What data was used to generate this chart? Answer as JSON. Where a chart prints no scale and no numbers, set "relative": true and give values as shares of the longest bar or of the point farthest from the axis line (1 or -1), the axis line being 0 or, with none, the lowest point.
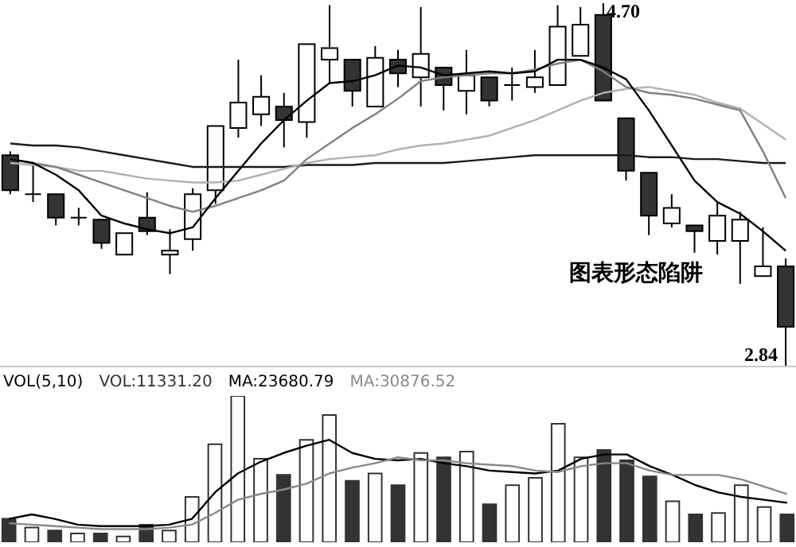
{
  "chart_data": [
    {
      "type": "candlestick",
      "categories": [
        null,
        null,
        null,
        null,
        null,
        null,
        null,
        null,
        null,
        null,
        null,
        null,
        null,
        null,
        null,
        null,
        null,
        null,
        null,
        null,
        null,
        null,
        null,
        null,
        null,
        null,
        null,
        null,
        null,
        null,
        null,
        null,
        null,
        null,
        null
      ],
      "ohlc": [
        [
          3.92,
          3.94,
          3.72,
          3.74
        ],
        [
          3.72,
          3.88,
          3.68,
          3.72
        ],
        [
          3.72,
          3.72,
          3.56,
          3.6
        ],
        [
          3.6,
          3.65,
          3.56,
          3.6
        ],
        [
          3.59,
          3.59,
          3.44,
          3.47
        ],
        [
          3.41,
          3.52,
          3.41,
          3.52
        ],
        [
          3.6,
          3.73,
          3.51,
          3.53
        ],
        [
          3.41,
          3.54,
          3.31,
          3.43
        ],
        [
          3.49,
          3.75,
          3.43,
          3.72
        ],
        [
          3.74,
          4.07,
          3.67,
          4.07
        ],
        [
          4.06,
          4.41,
          4.01,
          4.19
        ],
        [
          4.13,
          4.33,
          4.07,
          4.22
        ],
        [
          4.17,
          4.24,
          3.96,
          4.1
        ],
        [
          4.09,
          4.49,
          4.01,
          4.49
        ],
        [
          4.41,
          4.69,
          4.29,
          4.47
        ],
        [
          4.41,
          4.41,
          4.17,
          4.25
        ],
        [
          4.17,
          4.48,
          4.17,
          4.42
        ],
        [
          4.41,
          4.46,
          4.27,
          4.34
        ],
        [
          4.32,
          4.68,
          4.17,
          4.44
        ],
        [
          4.37,
          4.37,
          4.15,
          4.28
        ],
        [
          4.25,
          4.46,
          4.13,
          4.33
        ],
        [
          4.32,
          4.32,
          4.17,
          4.2
        ],
        [
          4.28,
          4.37,
          4.2,
          4.28
        ],
        [
          4.27,
          4.46,
          4.24,
          4.32
        ],
        [
          4.28,
          4.69,
          4.28,
          4.58
        ],
        [
          4.43,
          4.68,
          4.43,
          4.59
        ],
        [
          4.64,
          4.7,
          4.2,
          4.2
        ],
        [
          4.11,
          4.11,
          3.79,
          3.84
        ],
        [
          3.83,
          3.83,
          3.51,
          3.61
        ],
        [
          3.57,
          3.72,
          3.55,
          3.65
        ],
        [
          3.56,
          3.56,
          3.42,
          3.53
        ],
        [
          3.48,
          3.68,
          3.41,
          3.61
        ],
        [
          3.48,
          3.63,
          3.26,
          3.59
        ],
        [
          3.3,
          3.55,
          3.3,
          3.35
        ],
        [
          3.35,
          3.39,
          2.84,
          3.04
        ]
      ],
      "colors": [
        "#333333",
        "#000000",
        "#333333",
        "#000000",
        "#333333",
        "#ffffff",
        "#333333",
        "#ffffff",
        "#ffffff",
        "#ffffff",
        "#ffffff",
        "#ffffff",
        "#333333",
        "#ffffff",
        "#ffffff",
        "#333333",
        "#ffffff",
        "#333333",
        "#ffffff",
        "#333333",
        "#ffffff",
        "#333333",
        "#000000",
        "#ffffff",
        "#ffffff",
        "#ffffff",
        "#333333",
        "#333333",
        "#333333",
        "#ffffff",
        "#333333",
        "#ffffff",
        "#ffffff",
        "#ffffff",
        "#333333"
      ],
      "series": [
        {
          "type": "line",
          "color": "#1a1a1a",
          "values": [
            3.98,
            3.97,
            3.97,
            3.96,
            3.94,
            3.92,
            3.9,
            3.88,
            3.86,
            3.86,
            3.86,
            3.86,
            3.86,
            3.87,
            3.87,
            3.87,
            3.88,
            3.88,
            3.88,
            3.88,
            3.89,
            3.9,
            3.91,
            3.92,
            3.92,
            3.92,
            3.92,
            3.92,
            3.91,
            3.91,
            3.9,
            3.9,
            3.89,
            3.88,
            3.88
          ]
        },
        {
          "type": "line",
          "color": "#b0b0b0",
          "values": [
            3.88,
            3.87,
            3.86,
            3.84,
            3.84,
            3.82,
            3.8,
            3.79,
            3.78,
            3.78,
            3.79,
            3.82,
            3.85,
            3.88,
            3.9,
            3.91,
            3.92,
            3.95,
            3.97,
            3.98,
            4.0,
            4.02,
            4.06,
            4.1,
            4.15,
            4.2,
            4.24,
            4.26,
            4.27,
            4.25,
            4.23,
            4.19,
            4.16,
            4.08,
            4.0
          ]
        },
        {
          "type": "line",
          "color": "#808080",
          "values": [
            3.9,
            3.88,
            3.86,
            3.82,
            3.78,
            3.74,
            3.7,
            3.66,
            3.63,
            3.66,
            3.7,
            3.74,
            3.79,
            3.9,
            3.98,
            4.06,
            4.13,
            4.21,
            4.3,
            4.32,
            4.33,
            4.34,
            4.34,
            4.36,
            4.39,
            4.41,
            4.35,
            4.27,
            4.24,
            4.23,
            4.21,
            4.18,
            4.15,
            3.94,
            3.7
          ]
        },
        {
          "type": "line",
          "color": "#000000",
          "values": [
            3.9,
            3.88,
            3.82,
            3.74,
            3.61,
            3.57,
            3.54,
            3.52,
            3.55,
            3.7,
            3.84,
            3.98,
            4.1,
            4.2,
            4.29,
            4.3,
            4.33,
            4.38,
            4.37,
            4.33,
            4.34,
            4.35,
            4.34,
            4.35,
            4.41,
            4.41,
            4.37,
            4.31,
            4.15,
            3.97,
            3.79,
            3.68,
            3.62,
            3.53,
            3.43
          ]
        }
      ],
      "ylim": [
        2.84,
        4.7
      ],
      "annotations": [
        "4.70",
        "2.84",
        "图表形态陷阱"
      ]
    },
    {
      "type": "bar",
      "relative": true,
      "title": "VOL(5,10)",
      "legend": "top left",
      "categories": [
        null,
        null,
        null,
        null,
        null,
        null,
        null,
        null,
        null,
        null,
        null,
        null,
        null,
        null,
        null,
        null,
        null,
        null,
        null,
        null,
        null,
        null,
        null,
        null,
        null,
        null,
        null,
        null,
        null,
        null,
        null,
        null,
        null,
        null,
        null
      ],
      "series": [
        {
          "name": "VOL:11331.20",
          "color": "#333333",
          "colors": [
            "#333333",
            "#ffffff",
            "#333333",
            "#ffffff",
            "#333333",
            "#ffffff",
            "#333333",
            "#ffffff",
            "#ffffff",
            "#ffffff",
            "#ffffff",
            "#ffffff",
            "#333333",
            "#ffffff",
            "#ffffff",
            "#333333",
            "#ffffff",
            "#333333",
            "#ffffff",
            "#333333",
            "#ffffff",
            "#333333",
            "#ffffff",
            "#ffffff",
            "#ffffff",
            "#ffffff",
            "#333333",
            "#333333",
            "#333333",
            "#ffffff",
            "#333333",
            "#ffffff",
            "#ffffff",
            "#ffffff",
            "#333333"
          ],
          "values": [
            0.16,
            0.1,
            0.08,
            0.06,
            0.06,
            0.04,
            0.12,
            0.08,
            0.31,
            0.67,
            1,
            0.57,
            0.46,
            0.7,
            0.87,
            0.42,
            0.47,
            0.39,
            0.61,
            0.58,
            0.62,
            0.26,
            0.39,
            0.44,
            0.81,
            0.58,
            0.63,
            0.56,
            0.45,
            0.28,
            0.19,
            0.2,
            0.39,
            0.24,
            0.19
          ]
        },
        {
          "type": "line",
          "name": "MA:23680.79",
          "color": "#000000",
          "values": [
            0.16,
            0.19,
            0.16,
            0.12,
            0.11,
            0.11,
            0.11,
            0.12,
            0.16,
            0.34,
            0.47,
            0.55,
            0.61,
            0.66,
            0.7,
            0.61,
            0.57,
            0.56,
            0.57,
            0.54,
            0.52,
            0.49,
            0.48,
            0.47,
            0.49,
            0.57,
            0.6,
            0.6,
            0.52,
            0.46,
            0.39,
            0.34,
            0.31,
            0.29,
            0.27
          ]
        },
        {
          "type": "line",
          "name": "MA:30876.52",
          "color": "#888888",
          "values": [
            0.13,
            0.12,
            0.11,
            0.1,
            0.09,
            0.09,
            0.09,
            0.1,
            0.12,
            0.2,
            0.29,
            0.33,
            0.36,
            0.4,
            0.47,
            0.51,
            0.54,
            0.58,
            0.56,
            0.56,
            0.54,
            0.53,
            0.52,
            0.49,
            0.48,
            0.52,
            0.54,
            0.54,
            0.49,
            0.46,
            0.46,
            0.46,
            0.43,
            0.38,
            0.33
          ]
        }
      ]
    }
  ]
}
